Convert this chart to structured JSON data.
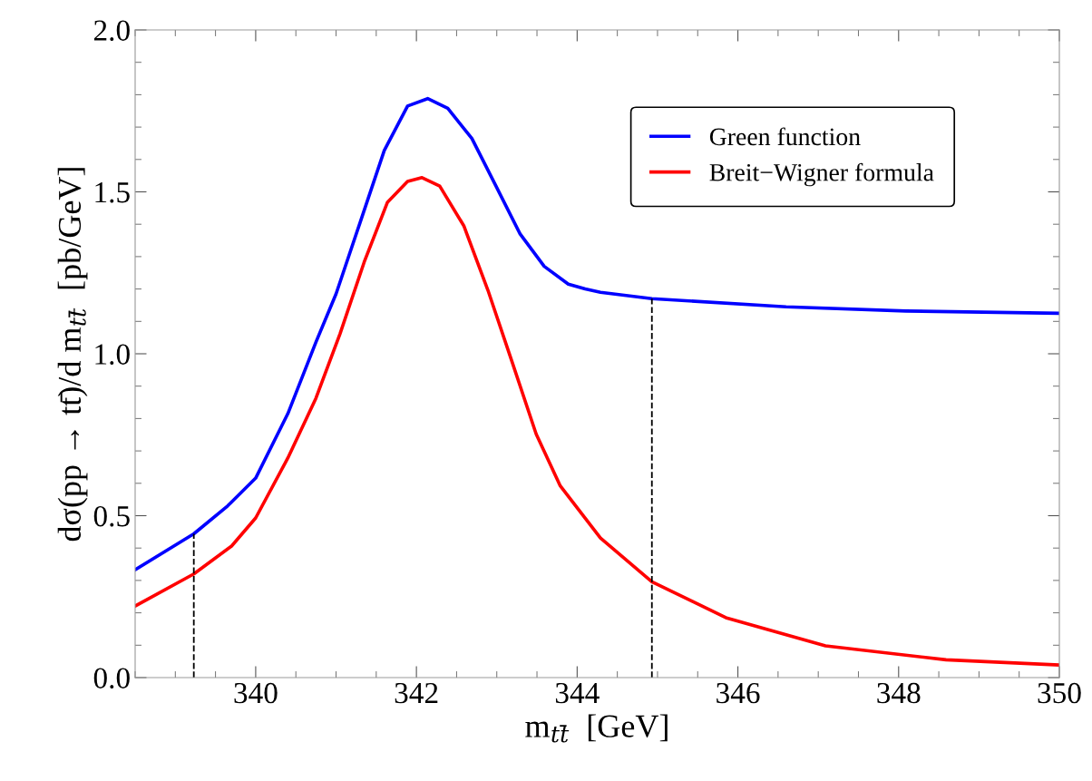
{
  "chart_data": {
    "type": "line",
    "xlabel": "m$_{tt̄}$  [GeV]",
    "ylabel": "dσ(pp → tt̄)/d m$_{tt̄}$  [pb/GeV]",
    "xlim": [
      338.5,
      350
    ],
    "xticks": [
      340,
      342,
      344,
      346,
      348,
      350
    ],
    "ylim": [
      0,
      2
    ],
    "yticks": [
      {
        "value": 0,
        "label": "0.0"
      },
      {
        "value": 0.5,
        "label": "0.5"
      },
      {
        "value": 1,
        "label": "1.0"
      },
      {
        "value": 1.5,
        "label": "1.5"
      },
      {
        "value": 2,
        "label": "2.0"
      }
    ],
    "grid": false,
    "legend": "top right",
    "line_style": "solid",
    "marker": "none",
    "series": [
      {
        "name": "Green function",
        "color": "#0000ff",
        "x": [
          338.5,
          339.23,
          339.65,
          340.0,
          340.4,
          340.75,
          341.0,
          341.3,
          341.6,
          341.89,
          342.14,
          342.39,
          342.69,
          342.99,
          343.29,
          343.59,
          343.89,
          344.1,
          344.29,
          344.93,
          346.6,
          348.09,
          350
        ],
        "values": [
          0.333,
          0.444,
          0.53,
          0.616,
          0.815,
          1.036,
          1.185,
          1.406,
          1.628,
          1.765,
          1.788,
          1.758,
          1.665,
          1.518,
          1.37,
          1.27,
          1.215,
          1.2,
          1.19,
          1.17,
          1.145,
          1.132,
          1.125
        ]
      },
      {
        "name": "Breit−Wigner formula",
        "color": "#ff0000",
        "x": [
          338.5,
          339.23,
          339.7,
          340.0,
          340.4,
          340.75,
          341.05,
          341.35,
          341.64,
          341.89,
          342.07,
          342.29,
          342.59,
          342.89,
          343.19,
          343.49,
          343.79,
          344.29,
          344.93,
          345.85,
          347.09,
          348.59,
          350
        ],
        "values": [
          0.221,
          0.32,
          0.406,
          0.493,
          0.678,
          0.863,
          1.062,
          1.283,
          1.468,
          1.532,
          1.544,
          1.518,
          1.395,
          1.196,
          0.975,
          0.752,
          0.592,
          0.431,
          0.296,
          0.185,
          0.098,
          0.055,
          0.039
        ]
      }
    ],
    "ref_lines": [
      {
        "axis": "x",
        "value": 339.23,
        "color": "#000000",
        "line_style": "dashed"
      },
      {
        "axis": "x",
        "value": 344.93,
        "color": "#000000",
        "line_style": "dashed"
      }
    ]
  }
}
